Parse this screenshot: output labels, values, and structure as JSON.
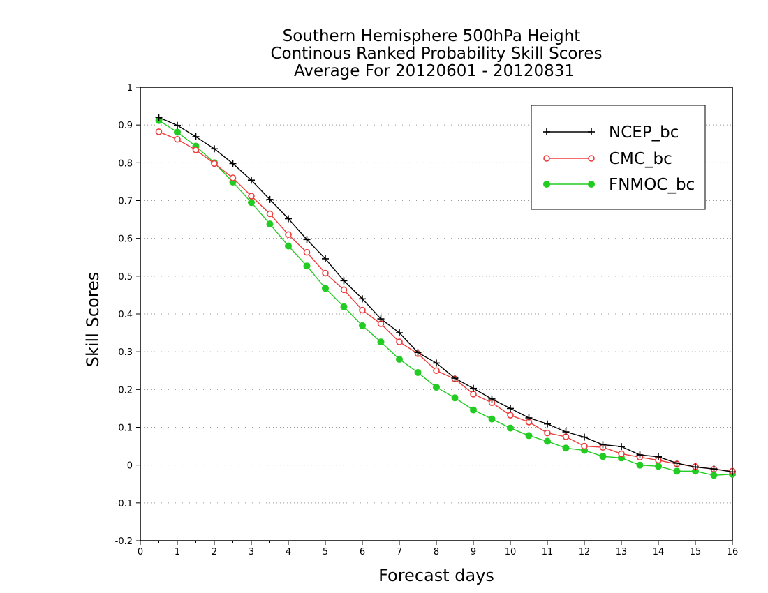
{
  "chart_data": {
    "type": "line",
    "title_lines": [
      "Southern Hemisphere 500hPa Height",
      "Continous Ranked Probability Skill Scores",
      "Average For 20120601 - 20120831"
    ],
    "xlabel": "Forecast days",
    "ylabel": "Skill Scores",
    "xlim": [
      0,
      16
    ],
    "ylim": [
      -0.2,
      1
    ],
    "x_ticks": [
      0,
      1,
      2,
      3,
      4,
      5,
      6,
      7,
      8,
      9,
      10,
      11,
      12,
      13,
      14,
      15,
      16
    ],
    "x_tick_labels": [
      "0",
      "1",
      "2",
      "3",
      "4",
      "5",
      "6",
      "7",
      "8",
      "9",
      "10",
      "11",
      "12",
      "13",
      "14",
      "15",
      "16"
    ],
    "y_ticks": [
      -0.2,
      -0.1,
      0,
      0.1,
      0.2,
      0.3,
      0.4,
      0.5,
      0.6,
      0.7,
      0.8,
      0.9,
      1
    ],
    "y_tick_labels": [
      "-0.2",
      "-0.1",
      "0",
      "0.1",
      "0.2",
      "0.3",
      "0.4",
      "0.5",
      "0.6",
      "0.7",
      "0.8",
      "0.9",
      "1"
    ],
    "grid": "horizontal dotted",
    "legend_position": "top-right",
    "x": [
      0.5,
      1,
      1.5,
      2,
      2.5,
      3,
      3.5,
      4,
      4.5,
      5,
      5.5,
      6,
      6.5,
      7,
      7.5,
      8,
      8.5,
      9,
      9.5,
      10,
      10.5,
      11,
      11.5,
      12,
      12.5,
      13,
      13.5,
      14,
      14.5,
      15,
      15.5,
      16
    ],
    "series": [
      {
        "name": "NCEP_bc",
        "color": "#000000",
        "marker": "plus",
        "values": [
          0.92,
          0.899,
          0.869,
          0.837,
          0.798,
          0.754,
          0.703,
          0.652,
          0.597,
          0.546,
          0.488,
          0.44,
          0.387,
          0.35,
          0.298,
          0.27,
          0.23,
          0.203,
          0.175,
          0.15,
          0.125,
          0.109,
          0.088,
          0.074,
          0.054,
          0.049,
          0.027,
          0.022,
          0.005,
          -0.005,
          -0.01,
          -0.018
        ]
      },
      {
        "name": "CMC_bc",
        "color": "#ee3c3c",
        "marker": "open-circle",
        "values": [
          0.882,
          0.862,
          0.834,
          0.798,
          0.76,
          0.712,
          0.665,
          0.61,
          0.563,
          0.508,
          0.464,
          0.41,
          0.374,
          0.326,
          0.295,
          0.25,
          0.228,
          0.188,
          0.165,
          0.132,
          0.114,
          0.085,
          0.075,
          0.05,
          0.047,
          0.03,
          0.021,
          0.013,
          0.003,
          -0.004,
          -0.011,
          -0.016
        ]
      },
      {
        "name": "FNMOC_bc",
        "color": "#22cc22",
        "marker": "filled-circle",
        "values": [
          0.912,
          0.881,
          0.844,
          0.8,
          0.749,
          0.695,
          0.638,
          0.58,
          0.527,
          0.468,
          0.419,
          0.369,
          0.326,
          0.28,
          0.245,
          0.206,
          0.178,
          0.146,
          0.122,
          0.098,
          0.078,
          0.063,
          0.045,
          0.039,
          0.023,
          0.019,
          0.0,
          -0.003,
          -0.016,
          -0.016,
          -0.027,
          -0.024
        ]
      }
    ]
  }
}
